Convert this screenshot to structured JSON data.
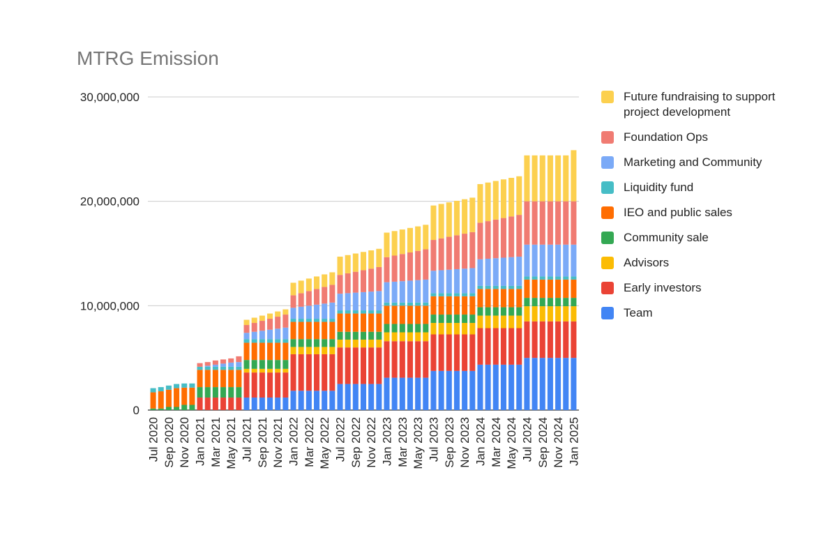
{
  "chart_data": {
    "type": "bar",
    "stacked": true,
    "title": "MTRG Emission",
    "xlabel": "",
    "ylabel": "",
    "ylim": [
      0,
      30000000
    ],
    "yticks": [
      0,
      10000000,
      20000000,
      30000000
    ],
    "ytick_labels": [
      "0",
      "10,000,000",
      "20,000,000",
      "30,000,000"
    ],
    "grid": true,
    "legend_position": "right",
    "categories": [
      "Jul 2020",
      "Aug 2020",
      "Sep 2020",
      "Oct 2020",
      "Nov 2020",
      "Dec 2020",
      "Jan 2021",
      "Feb 2021",
      "Mar 2021",
      "Apr 2021",
      "May 2021",
      "Jun 2021",
      "Jul 2021",
      "Aug 2021",
      "Sep 2021",
      "Oct 2021",
      "Nov 2021",
      "Dec 2021",
      "Jan 2022",
      "Feb 2022",
      "Mar 2022",
      "Apr 2022",
      "May 2022",
      "Jun 2022",
      "Jul 2022",
      "Aug 2022",
      "Sep 2022",
      "Oct 2022",
      "Nov 2022",
      "Dec 2022",
      "Jan 2023",
      "Feb 2023",
      "Mar 2023",
      "Apr 2023",
      "May 2023",
      "Jun 2023",
      "Jul 2023",
      "Aug 2023",
      "Sep 2023",
      "Oct 2023",
      "Nov 2023",
      "Dec 2023",
      "Jan 2024",
      "Feb 2024",
      "Mar 2024",
      "Apr 2024",
      "May 2024",
      "Jun 2024",
      "Jul 2024",
      "Aug 2024",
      "Sep 2024",
      "Oct 2024",
      "Nov 2024",
      "Dec 2024",
      "Jan 2025"
    ],
    "tick_labels": [
      "Jul 2020",
      "Sep 2020",
      "Nov 2020",
      "Jan 2021",
      "Mar 2021",
      "May 2021",
      "Jul 2021",
      "Sep 2021",
      "Nov 2021",
      "Jan 2022",
      "Mar 2022",
      "May 2022",
      "Jul 2022",
      "Sep 2022",
      "Nov 2022",
      "Jan 2023",
      "Mar 2023",
      "May 2023",
      "Jul 2023",
      "Sep 2023",
      "Nov 2023",
      "Jan 2024",
      "Mar 2024",
      "May 2024",
      "Jul 2024",
      "Sep 2024",
      "Nov 2024",
      "Jan 2025"
    ],
    "series": [
      {
        "name": "Team",
        "color": "#4285f4",
        "values": [
          0,
          0,
          0,
          0,
          0,
          0,
          0,
          0,
          0,
          0,
          0,
          0,
          1200000,
          1200000,
          1200000,
          1200000,
          1200000,
          1200000,
          1850000,
          1850000,
          1850000,
          1850000,
          1850000,
          1850000,
          2500000,
          2500000,
          2500000,
          2500000,
          2500000,
          2500000,
          3100000,
          3100000,
          3100000,
          3100000,
          3100000,
          3100000,
          3750000,
          3750000,
          3750000,
          3750000,
          3750000,
          3750000,
          4350000,
          4350000,
          4350000,
          4350000,
          4350000,
          4350000,
          5000000,
          5000000,
          5000000,
          5000000,
          5000000,
          5000000,
          5000000
        ]
      },
      {
        "name": "Early investors",
        "color": "#ea4335",
        "values": [
          0,
          0,
          0,
          0,
          0,
          0,
          1200000,
          1200000,
          1200000,
          1200000,
          1200000,
          1200000,
          2400000,
          2400000,
          2400000,
          2400000,
          2400000,
          2400000,
          3500000,
          3500000,
          3500000,
          3500000,
          3500000,
          3500000,
          3500000,
          3500000,
          3500000,
          3500000,
          3500000,
          3500000,
          3500000,
          3500000,
          3500000,
          3500000,
          3500000,
          3500000,
          3500000,
          3500000,
          3500000,
          3500000,
          3500000,
          3500000,
          3500000,
          3500000,
          3500000,
          3500000,
          3500000,
          3500000,
          3500000,
          3500000,
          3500000,
          3500000,
          3500000,
          3500000,
          3500000
        ]
      },
      {
        "name": "Advisors",
        "color": "#fbbc04",
        "values": [
          0,
          0,
          0,
          0,
          0,
          0,
          0,
          0,
          0,
          0,
          0,
          0,
          350000,
          350000,
          350000,
          350000,
          350000,
          350000,
          700000,
          700000,
          700000,
          700000,
          700000,
          700000,
          750000,
          750000,
          750000,
          750000,
          750000,
          750000,
          850000,
          850000,
          850000,
          850000,
          850000,
          850000,
          1100000,
          1100000,
          1100000,
          1100000,
          1100000,
          1100000,
          1200000,
          1200000,
          1200000,
          1200000,
          1200000,
          1200000,
          1450000,
          1450000,
          1450000,
          1450000,
          1450000,
          1450000,
          1450000
        ]
      },
      {
        "name": "Community sale",
        "color": "#34a853",
        "values": [
          150000,
          150000,
          300000,
          300000,
          500000,
          500000,
          1000000,
          1000000,
          1000000,
          1000000,
          1000000,
          1000000,
          850000,
          850000,
          850000,
          850000,
          850000,
          850000,
          750000,
          750000,
          750000,
          750000,
          750000,
          750000,
          750000,
          750000,
          750000,
          750000,
          750000,
          750000,
          800000,
          800000,
          800000,
          800000,
          800000,
          800000,
          800000,
          800000,
          800000,
          800000,
          800000,
          800000,
          800000,
          800000,
          800000,
          800000,
          800000,
          800000,
          800000,
          800000,
          800000,
          800000,
          800000,
          800000,
          800000
        ]
      },
      {
        "name": "IEO and public sales",
        "color": "#ff6d01",
        "values": [
          1550000,
          1650000,
          1650000,
          1800000,
          1650000,
          1650000,
          1650000,
          1650000,
          1650000,
          1650000,
          1650000,
          1650000,
          1650000,
          1650000,
          1650000,
          1650000,
          1650000,
          1650000,
          1650000,
          1650000,
          1650000,
          1650000,
          1650000,
          1650000,
          1750000,
          1750000,
          1750000,
          1750000,
          1750000,
          1750000,
          1750000,
          1750000,
          1750000,
          1750000,
          1750000,
          1750000,
          1750000,
          1750000,
          1750000,
          1750000,
          1750000,
          1750000,
          1750000,
          1750000,
          1750000,
          1750000,
          1750000,
          1750000,
          1750000,
          1750000,
          1750000,
          1750000,
          1750000,
          1750000,
          1750000
        ]
      },
      {
        "name": "Liquidity fund",
        "color": "#46bdc6",
        "values": [
          400000,
          400000,
          400000,
          400000,
          400000,
          400000,
          300000,
          300000,
          300000,
          300000,
          300000,
          300000,
          350000,
          350000,
          350000,
          350000,
          350000,
          350000,
          300000,
          300000,
          300000,
          300000,
          300000,
          300000,
          300000,
          300000,
          300000,
          300000,
          300000,
          300000,
          300000,
          300000,
          300000,
          300000,
          300000,
          300000,
          300000,
          300000,
          300000,
          300000,
          300000,
          300000,
          300000,
          300000,
          300000,
          300000,
          300000,
          300000,
          300000,
          300000,
          300000,
          300000,
          300000,
          300000,
          300000
        ]
      },
      {
        "name": "Marketing and Community",
        "color": "#7baaf7",
        "values": [
          0,
          0,
          0,
          0,
          0,
          0,
          0,
          100000,
          200000,
          300000,
          400000,
          450000,
          600000,
          700000,
          800000,
          900000,
          1000000,
          1100000,
          1050000,
          1150000,
          1250000,
          1350000,
          1450000,
          1550000,
          1600000,
          1650000,
          1700000,
          1750000,
          1800000,
          1850000,
          1950000,
          2000000,
          2050000,
          2100000,
          2150000,
          2200000,
          2150000,
          2200000,
          2250000,
          2300000,
          2350000,
          2400000,
          2550000,
          2600000,
          2650000,
          2700000,
          2750000,
          2800000,
          3050000,
          3050000,
          3050000,
          3050000,
          3050000,
          3050000,
          3050000
        ]
      },
      {
        "name": "Foundation Ops",
        "color": "#f07b72",
        "values": [
          0,
          0,
          0,
          0,
          0,
          0,
          350000,
          350000,
          400000,
          400000,
          400000,
          550000,
          750000,
          850000,
          950000,
          1050000,
          1150000,
          1250000,
          1200000,
          1300000,
          1400000,
          1500000,
          1600000,
          1700000,
          1800000,
          1900000,
          2000000,
          2100000,
          2200000,
          2300000,
          2400000,
          2500000,
          2600000,
          2700000,
          2800000,
          2900000,
          2950000,
          3050000,
          3150000,
          3250000,
          3350000,
          3450000,
          3500000,
          3600000,
          3700000,
          3800000,
          3900000,
          4000000,
          4150000,
          4150000,
          4150000,
          4150000,
          4150000,
          4150000,
          4150000
        ]
      },
      {
        "name": "Future fundraising to support project development",
        "color": "#fcd04f",
        "values": [
          0,
          0,
          0,
          0,
          0,
          0,
          0,
          0,
          0,
          0,
          0,
          0,
          500000,
          500000,
          500000,
          500000,
          500000,
          500000,
          1200000,
          1200000,
          1200000,
          1200000,
          1200000,
          1200000,
          1750000,
          1750000,
          1750000,
          1750000,
          1750000,
          1750000,
          2350000,
          2350000,
          2350000,
          2350000,
          2350000,
          2350000,
          3300000,
          3300000,
          3300000,
          3300000,
          3300000,
          3300000,
          3700000,
          3700000,
          3700000,
          3700000,
          3700000,
          3700000,
          4400000,
          4400000,
          4400000,
          4400000,
          4400000,
          4400000,
          4900000
        ]
      }
    ],
    "legend_order": [
      "Future fundraising to support project development",
      "Foundation Ops",
      "Marketing and Community",
      "Liquidity fund",
      "IEO and public sales",
      "Community sale",
      "Advisors",
      "Early investors",
      "Team"
    ]
  }
}
